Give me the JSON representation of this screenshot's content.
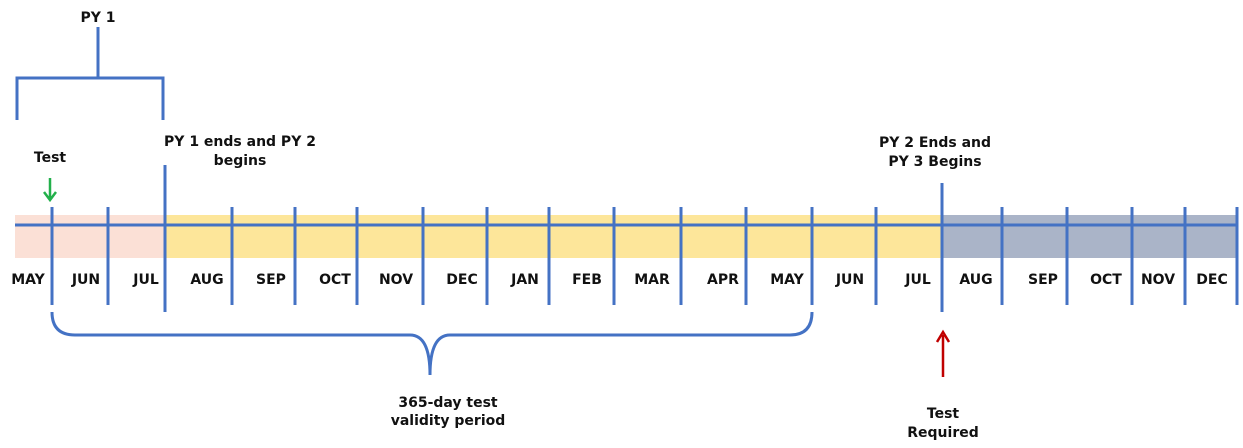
{
  "timeline": {
    "months": [
      "MAY",
      "JUN",
      "JUL",
      "AUG",
      "SEP",
      "OCT",
      "NOV",
      "DEC",
      "JAN",
      "FEB",
      "MAR",
      "APR",
      "MAY",
      "JUN",
      "JUL",
      "AUG",
      "SEP",
      "OCT",
      "NOV",
      "DEC"
    ]
  },
  "labels": {
    "py1": "PY 1",
    "test": "Test",
    "py1_end": [
      "PY 1 ends and PY 2",
      "begins"
    ],
    "py2_end": [
      "PY 2 Ends and",
      "PY 3 Begins"
    ],
    "validity": [
      "365-day test",
      "validity period"
    ],
    "test_required": [
      "Test",
      "Required"
    ]
  }
}
